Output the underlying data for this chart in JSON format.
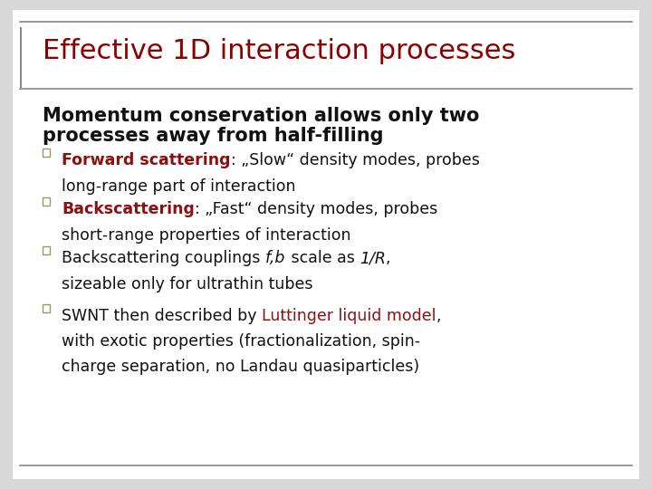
{
  "title": "Effective 1D interaction processes",
  "title_color": "#8B0000",
  "title_fontsize": 22,
  "subtitle_line1": "Momentum conservation allows only two",
  "subtitle_line2": "processes away from half-filling",
  "subtitle_color": "#111111",
  "subtitle_fontsize": 15,
  "background_color": "#d8d8d8",
  "slide_bg": "#ffffff",
  "bullet_sq_color": "#999966",
  "left_bar_color": "#888888",
  "bottom_line_color": "#888888",
  "font_family": "DejaVu Sans",
  "body_fontsize": 12.5,
  "bullet_items": [
    {
      "lines": [
        [
          {
            "text": "Forward scattering",
            "color": "#8B1010",
            "bold": true
          },
          {
            "text": ": „Slow“ density modes, probes",
            "color": "#111111",
            "bold": false
          }
        ],
        [
          {
            "text": "long-range part of interaction",
            "color": "#111111",
            "bold": false
          }
        ]
      ]
    },
    {
      "lines": [
        [
          {
            "text": "Backscattering",
            "color": "#8B1010",
            "bold": true
          },
          {
            "text": ": „Fast“ density modes, probes",
            "color": "#111111",
            "bold": false
          }
        ],
        [
          {
            "text": "short-range properties of interaction",
            "color": "#111111",
            "bold": false
          }
        ]
      ]
    },
    {
      "lines": [
        [
          {
            "text": "Backscattering couplings ",
            "color": "#111111",
            "bold": false
          },
          {
            "text": "f,b",
            "color": "#111111",
            "bold": false,
            "italic": true
          },
          {
            "text": " scale as ",
            "color": "#111111",
            "bold": false
          },
          {
            "text": "1/R",
            "color": "#111111",
            "bold": false,
            "italic": true
          },
          {
            "text": ",",
            "color": "#111111",
            "bold": false
          }
        ],
        [
          {
            "text": "sizeable only for ultrathin tubes",
            "color": "#111111",
            "bold": false
          }
        ]
      ]
    },
    {
      "lines": [
        [
          {
            "text": "SWNT then described by ",
            "color": "#111111",
            "bold": false
          },
          {
            "text": "Luttinger liquid model",
            "color": "#8B1010",
            "bold": false
          },
          {
            "text": ",",
            "color": "#111111",
            "bold": false
          }
        ],
        [
          {
            "text": "with exotic properties (fractionalization, spin-",
            "color": "#111111",
            "bold": false
          }
        ],
        [
          {
            "text": "charge separation, no Landau quasiparticles)",
            "color": "#111111",
            "bold": false
          }
        ]
      ]
    }
  ]
}
